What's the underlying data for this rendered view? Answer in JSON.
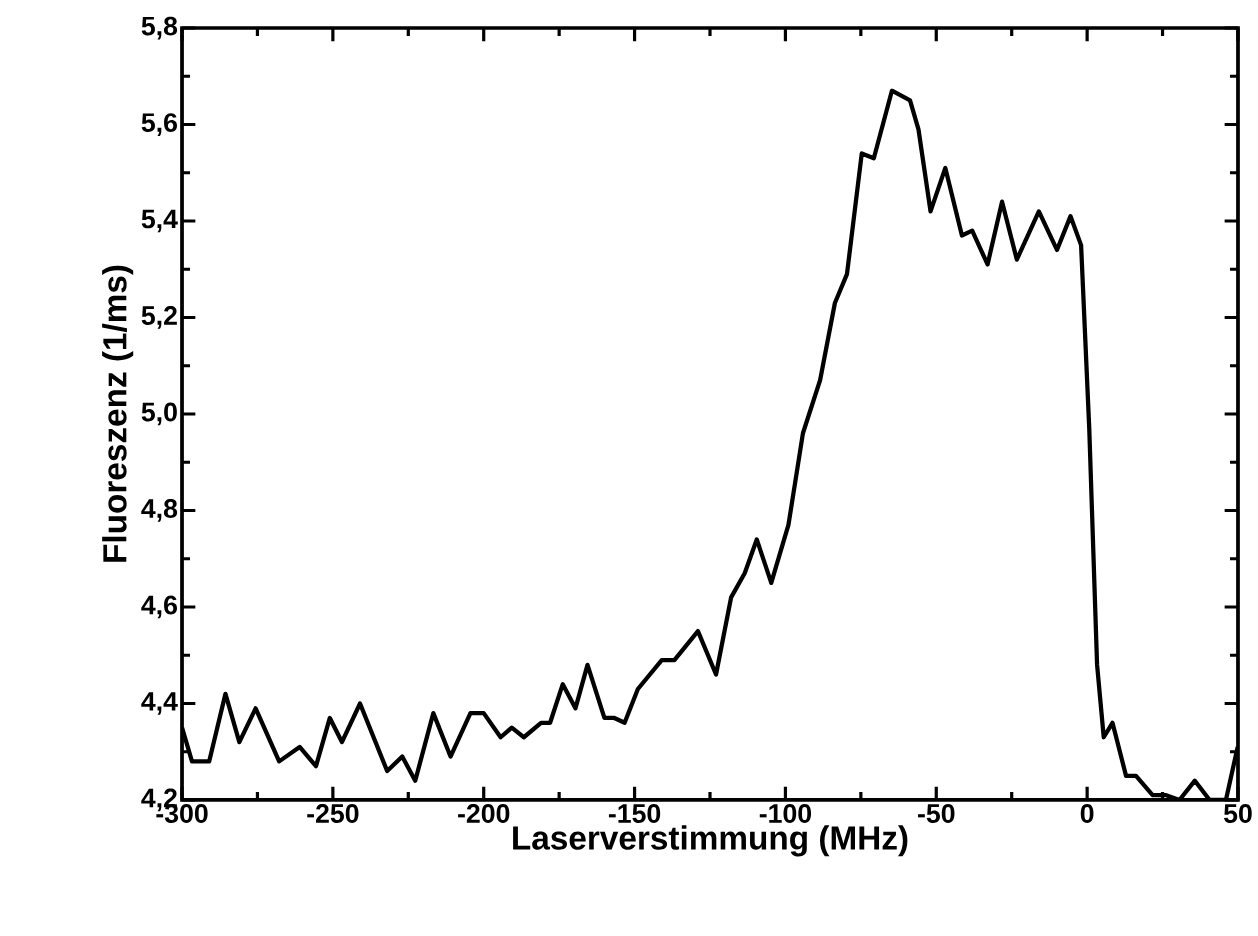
{
  "chart_data": {
    "type": "line",
    "xlabel": "Laserverstimmung (MHz)",
    "ylabel": "Fluoreszenz (1/ms)",
    "xlim": [
      -300,
      50
    ],
    "ylim": [
      4.2,
      5.8
    ],
    "xticks": [
      -300,
      -250,
      -200,
      -150,
      -100,
      -50,
      0,
      50
    ],
    "yticks": [
      {
        "value": 4.2,
        "label": "4,2"
      },
      {
        "value": 4.4,
        "label": "4,4"
      },
      {
        "value": 4.6,
        "label": "4,6"
      },
      {
        "value": 4.8,
        "label": "4,8"
      },
      {
        "value": 5.0,
        "label": "5,0"
      },
      {
        "value": 5.2,
        "label": "5,2"
      },
      {
        "value": 5.4,
        "label": "5,4"
      },
      {
        "value": 5.6,
        "label": "5,6"
      },
      {
        "value": 5.8,
        "label": "5,8"
      }
    ],
    "grid": false,
    "marker": "none",
    "line_style": "solid",
    "series": [
      {
        "color": "#000000",
        "x": [
          -300,
          -296.7,
          -291,
          -285.6,
          -281,
          -275.6,
          -267.8,
          -261,
          -255.6,
          -251,
          -247,
          -241,
          -232,
          -227,
          -222.7,
          -216.7,
          -211,
          -204.4,
          -200,
          -194.4,
          -190.7,
          -186.7,
          -181,
          -178,
          -173.8,
          -169.6,
          -165.6,
          -160,
          -156.7,
          -153.3,
          -148.9,
          -141,
          -136.8,
          -129,
          -123,
          -118,
          -113.5,
          -109.5,
          -104.7,
          -99,
          -94.2,
          -88.5,
          -83.6,
          -79.6,
          -74.7,
          -70.7,
          -64.7,
          -58.7,
          -55.9,
          -51.9,
          -47,
          -41.5,
          -38.1,
          -33,
          -28.2,
          -23.3,
          -16,
          -10,
          -5.5,
          -2,
          0.7,
          3.3,
          5.5,
          8.4,
          12.9,
          16.2,
          21.7,
          26.2,
          30.6,
          35.7,
          40.6,
          46,
          49.9
        ],
        "values": [
          4.35,
          4.28,
          4.28,
          4.42,
          4.32,
          4.39,
          4.28,
          4.31,
          4.27,
          4.37,
          4.32,
          4.4,
          4.26,
          4.29,
          4.24,
          4.38,
          4.29,
          4.38,
          4.38,
          4.33,
          4.35,
          4.33,
          4.36,
          4.36,
          4.44,
          4.39,
          4.48,
          4.37,
          4.37,
          4.36,
          4.43,
          4.49,
          4.49,
          4.55,
          4.46,
          4.62,
          4.67,
          4.74,
          4.65,
          4.77,
          4.96,
          5.07,
          5.23,
          5.29,
          5.54,
          5.53,
          5.67,
          5.65,
          5.59,
          5.42,
          5.51,
          5.37,
          5.38,
          5.31,
          5.44,
          5.32,
          5.42,
          5.34,
          5.41,
          5.35,
          4.97,
          4.48,
          4.33,
          4.36,
          4.25,
          4.25,
          4.21,
          4.21,
          4.2,
          4.24,
          4.2,
          4.2,
          4.31
        ]
      }
    ]
  }
}
